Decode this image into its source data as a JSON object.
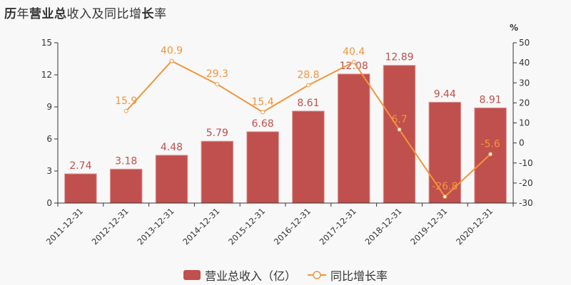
{
  "title": {
    "parts": [
      {
        "text": "历",
        "bold": true
      },
      {
        "text": "年",
        "bold": false
      },
      {
        "text": "营业总",
        "bold": true
      },
      {
        "text": "收入及同比增",
        "bold": false
      },
      {
        "text": "长",
        "bold": true
      },
      {
        "text": "率",
        "bold": false
      }
    ]
  },
  "legend": {
    "bar_label": "营业总收入（亿）",
    "line_label": "同比增长率"
  },
  "colors": {
    "bar": "#c0504d",
    "bar_label": "#c0504d",
    "line": "#f0963c",
    "axis": "#333333",
    "background": "#f8f8f8"
  },
  "chart_data": {
    "type": "bar+line",
    "title": "历年营业总收入及同比增长率",
    "categories": [
      "2011-12-31",
      "2012-12-31",
      "2013-12-31",
      "2014-12-31",
      "2015-12-31",
      "2016-12-31",
      "2017-12-31",
      "2018-12-31",
      "2019-12-31",
      "2020-12-31"
    ],
    "series": [
      {
        "name": "营业总收入（亿）",
        "type": "bar",
        "axis": "left",
        "values": [
          2.74,
          3.18,
          4.48,
          5.79,
          6.68,
          8.61,
          12.08,
          12.89,
          9.44,
          8.91
        ]
      },
      {
        "name": "同比增长率",
        "type": "line",
        "axis": "right",
        "values": [
          null,
          15.9,
          40.9,
          29.3,
          15.4,
          28.8,
          40.4,
          6.7,
          -26.8,
          -5.6
        ]
      }
    ],
    "left_axis": {
      "ticks": [
        0,
        3,
        6,
        9,
        12,
        15
      ],
      "ylim": [
        0,
        15
      ]
    },
    "right_axis": {
      "label": "%",
      "ticks": [
        -30,
        -20,
        -10,
        0,
        10,
        20,
        30,
        40,
        50
      ],
      "ylim": [
        -30,
        50
      ]
    },
    "xlabel": "",
    "ylabel": "",
    "grid": false,
    "legend_position": "bottom"
  }
}
